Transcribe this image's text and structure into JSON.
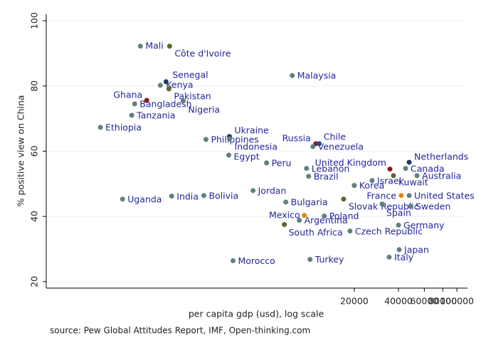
{
  "chart_data": {
    "type": "scatter",
    "x_label": "per capita gdp (usd), log scale",
    "y_label": "% positive view on China",
    "note": "source: Pew Global Attitudes Report, IMF, Open-thinking.com",
    "log_x": true,
    "grid": true,
    "xlim": [
      160,
      118000
    ],
    "ylim": [
      18,
      102
    ],
    "xticks": [
      20000,
      40000,
      60000,
      80000,
      100000
    ],
    "yticks": [
      20,
      40,
      60,
      80,
      100
    ],
    "label_color": "#25259a",
    "labels": [
      "Mali",
      "Côte d'Ivoire",
      "Senegal",
      "Kenya",
      "Pakistan",
      "Ghana",
      "Bangladesh",
      "Nigeria",
      "Tanzania",
      "Ethiopia",
      "Malaysia",
      "Ukraine",
      "Philippines",
      "Indonesia",
      "Egypt",
      "Peru",
      "Russia",
      "Chile",
      "Venezuela",
      "United Kingdom",
      "Lebanon",
      "Brazil",
      "Korea",
      "Israel",
      "Kuwait",
      "Netherlands",
      "Canada",
      "Australia",
      "France",
      "United States",
      "Slovak Republic",
      "Spain",
      "Sweden",
      "Jordan",
      "Uganda",
      "India",
      "Bolivia",
      "Bulgaria",
      "Mexico",
      "Argentina",
      "Poland",
      "South Africa",
      "Czech Republic",
      "Germany",
      "Japan",
      "Italy",
      "Turkey",
      "Morocco"
    ],
    "x": [
      700,
      1106,
      1046,
      957,
      1094,
      773,
      640,
      1368,
      611,
      374,
      7566,
      2826,
      1956,
      2830,
      2798,
      5058,
      10940,
      11560,
      10460,
      34980,
      9460,
      9780,
      20000,
      26440,
      36980,
      47300,
      44740,
      53460,
      41800,
      47300,
      16920,
      30920,
      48340,
      4092,
      529,
      1143,
      1892,
      6838,
      9140,
      8450,
      12500,
      6686,
      18700,
      40000,
      40460,
      34580,
      10000,
      2990
    ],
    "values": [
      92.2,
      92.2,
      81.3,
      80.2,
      79.1,
      75.6,
      74.5,
      75.4,
      71.0,
      67.3,
      83.2,
      64.5,
      63.6,
      63.8,
      58.8,
      56.4,
      62.3,
      62.3,
      61.4,
      54.5,
      54.7,
      52.3,
      49.5,
      51.0,
      52.5,
      56.6,
      54.7,
      52.5,
      46.4,
      46.4,
      45.3,
      43.8,
      43.1,
      47.9,
      45.3,
      46.2,
      46.4,
      44.4,
      40.3,
      38.8,
      40.1,
      37.5,
      35.5,
      37.3,
      29.8,
      27.5,
      26.8,
      26.4
    ],
    "colors": [
      "#5f8080",
      "#556b2f",
      "#1a3a6b",
      "#5f8080",
      "#556b2f",
      "#8b1a1a",
      "#5f8080",
      "#5f8080",
      "#5f8080",
      "#5f8080",
      "#5f8080",
      "#1a3a6b",
      "#5f8080",
      "#5f8080",
      "#5f8080",
      "#5f8080",
      "#8b1a1a",
      "#1f4ea8",
      "#5f8080",
      "#8b1a1a",
      "#5f8080",
      "#5f8080",
      "#5f8080",
      "#5f8080",
      "#556b2f",
      "#1a3a6b",
      "#5f8080",
      "#5f8080",
      "#e8850c",
      "#5f8080",
      "#556b2f",
      "#5f8080",
      "#5f8080",
      "#5f8080",
      "#5f8080",
      "#5f8080",
      "#5f8080",
      "#5f8080",
      "#e8850c",
      "#5f8080",
      "#5f8080",
      "#556b2f",
      "#5f8080",
      "#5f8080",
      "#5f8080",
      "#5f8080",
      "#5f8080",
      "#5f8080"
    ]
  }
}
